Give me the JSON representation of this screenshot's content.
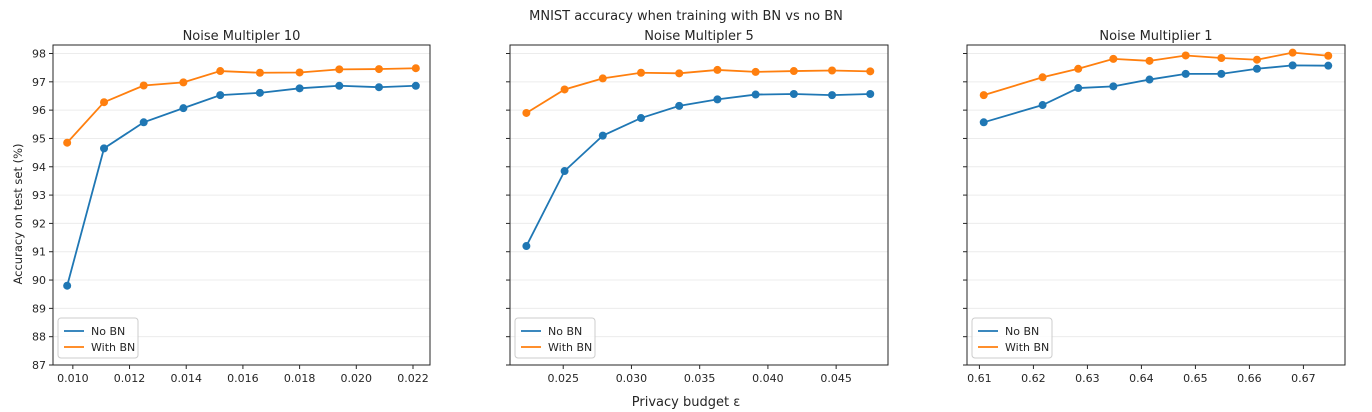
{
  "figure": {
    "suptitle": "MNIST accuracy when training with BN vs no BN",
    "ylabel": "Accuracy on test set (%)",
    "xlabel": "Privacy budget ε"
  },
  "colors": {
    "no_bn": "#1f77b4",
    "with_bn": "#ff7f0e"
  },
  "chart_data": [
    {
      "type": "line",
      "title": "Noise Multipler 10",
      "xlim": [
        0.0093,
        0.0226
      ],
      "ylim": [
        87,
        98.3
      ],
      "xticks": [
        0.01,
        0.012,
        0.014,
        0.016,
        0.018,
        0.02,
        0.022
      ],
      "xtick_labels": [
        "0.010",
        "0.012",
        "0.014",
        "0.016",
        "0.018",
        "0.020",
        "0.022"
      ],
      "yticks": [
        87,
        88,
        89,
        90,
        91,
        92,
        93,
        94,
        95,
        96,
        97,
        98
      ],
      "ytick_labels": [
        "87",
        "88",
        "89",
        "90",
        "91",
        "92",
        "93",
        "94",
        "95",
        "96",
        "97",
        "98"
      ],
      "grid": "horizontal",
      "legend": "lower-left",
      "series": [
        {
          "name": "No BN",
          "x": [
            0.0098,
            0.0111,
            0.0125,
            0.0139,
            0.0152,
            0.0166,
            0.018,
            0.0194,
            0.0208,
            0.0221
          ],
          "y": [
            89.8,
            94.65,
            95.57,
            96.07,
            96.53,
            96.61,
            96.77,
            96.86,
            96.81,
            96.86
          ]
        },
        {
          "name": "With BN",
          "x": [
            0.0098,
            0.0111,
            0.0125,
            0.0139,
            0.0152,
            0.0166,
            0.018,
            0.0194,
            0.0208,
            0.0221
          ],
          "y": [
            94.85,
            96.28,
            96.87,
            96.98,
            97.38,
            97.32,
            97.33,
            97.44,
            97.45,
            97.48
          ]
        }
      ]
    },
    {
      "type": "line",
      "title": "Noise Multipler 5",
      "xlim": [
        0.0211,
        0.0488
      ],
      "ylim": [
        87,
        98.3
      ],
      "xticks": [
        0.025,
        0.03,
        0.035,
        0.04,
        0.045
      ],
      "xtick_labels": [
        "0.025",
        "0.030",
        "0.035",
        "0.040",
        "0.045"
      ],
      "grid": "horizontal",
      "legend": "lower-left",
      "series": [
        {
          "name": "No BN",
          "x": [
            0.0223,
            0.0251,
            0.0279,
            0.0307,
            0.0335,
            0.0363,
            0.0391,
            0.0419,
            0.0447,
            0.0475
          ],
          "y": [
            91.2,
            93.85,
            95.1,
            95.72,
            96.15,
            96.38,
            96.55,
            96.57,
            96.53,
            96.57
          ]
        },
        {
          "name": "With BN",
          "x": [
            0.0223,
            0.0251,
            0.0279,
            0.0307,
            0.0335,
            0.0363,
            0.0391,
            0.0419,
            0.0447,
            0.0475
          ],
          "y": [
            95.9,
            96.73,
            97.12,
            97.32,
            97.3,
            97.42,
            97.35,
            97.38,
            97.4,
            97.37
          ]
        }
      ]
    },
    {
      "type": "line",
      "title": "Noise Multiplier 1",
      "xlim": [
        0.6077,
        0.6777
      ],
      "ylim": [
        87,
        98.3
      ],
      "xticks": [
        0.61,
        0.62,
        0.63,
        0.64,
        0.65,
        0.66,
        0.67
      ],
      "xtick_labels": [
        "0.61",
        "0.62",
        "0.63",
        "0.64",
        "0.65",
        "0.66",
        "0.67"
      ],
      "grid": "horizontal",
      "legend": "lower-left",
      "series": [
        {
          "name": "No BN",
          "x": [
            0.6108,
            0.6217,
            0.6283,
            0.6348,
            0.6415,
            0.6482,
            0.6548,
            0.6614,
            0.668,
            0.6746
          ],
          "y": [
            95.57,
            96.18,
            96.78,
            96.84,
            97.08,
            97.28,
            97.28,
            97.46,
            97.58,
            97.57
          ]
        },
        {
          "name": "With BN",
          "x": [
            0.6108,
            0.6217,
            0.6283,
            0.6348,
            0.6415,
            0.6482,
            0.6548,
            0.6614,
            0.668,
            0.6746
          ],
          "y": [
            96.53,
            97.16,
            97.46,
            97.81,
            97.74,
            97.93,
            97.84,
            97.78,
            98.03,
            97.92
          ]
        }
      ]
    }
  ]
}
